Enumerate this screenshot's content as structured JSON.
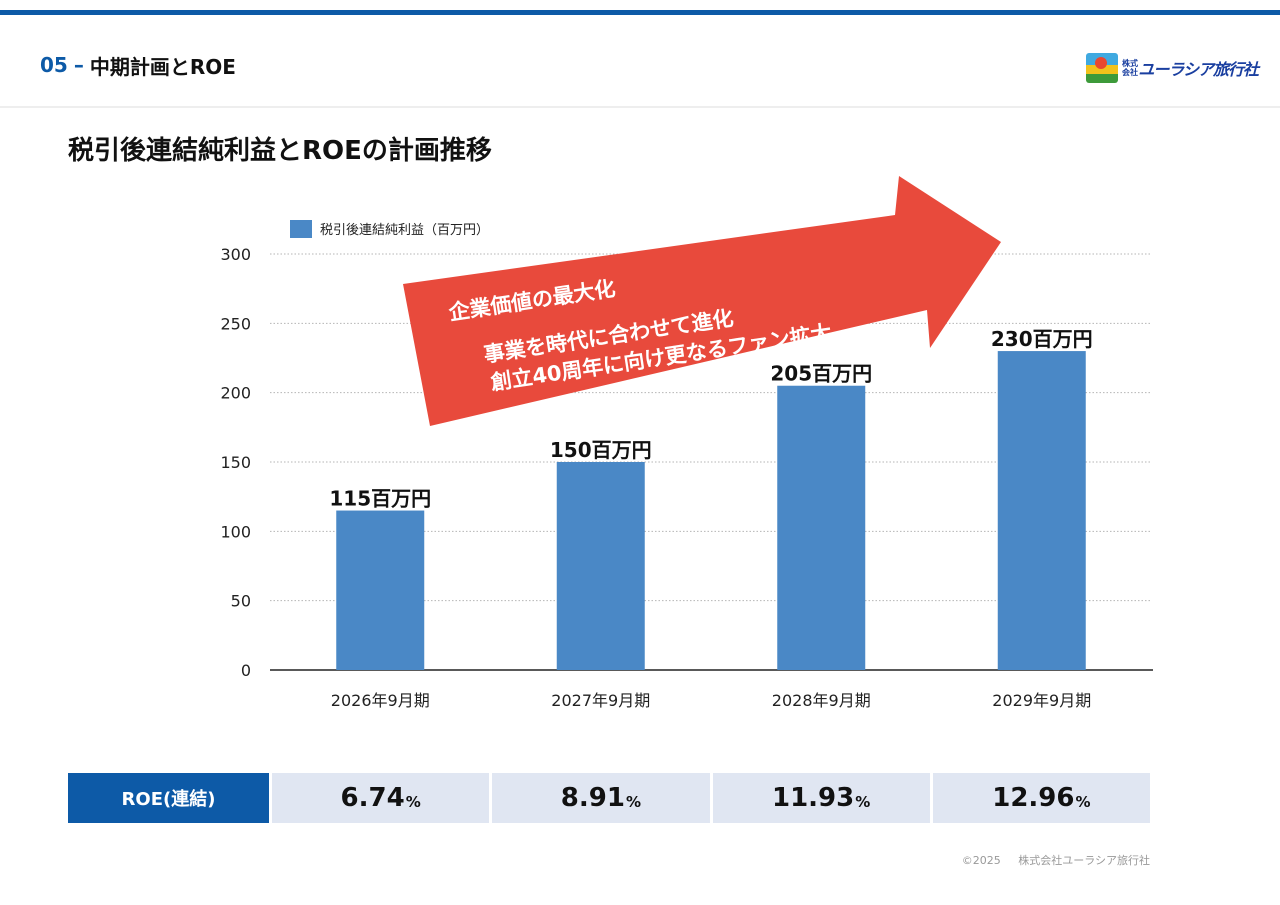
{
  "header": {
    "section_number": "05",
    "dash": "–",
    "section_title": "中期計画とROE"
  },
  "logo": {
    "corp_mark": "株式会社",
    "name": "ユーラシア旅行社"
  },
  "page_title": "税引後連結純利益とROEの計画推移",
  "arrow": {
    "color": "#e84a3c",
    "lines": [
      "企業価値の最大化",
      "事業を時代に合わせて進化",
      "創立40周年に向け更なるファン拡大"
    ]
  },
  "chart_data": {
    "type": "bar",
    "categories": [
      "2026年9月期",
      "2027年9月期",
      "2028年9月期",
      "2029年9月期"
    ],
    "series": [
      {
        "name": "税引後連結純利益（百万円）",
        "values": [
          115,
          150,
          205,
          230
        ],
        "color": "#4a88c6"
      }
    ],
    "data_labels": [
      "115百万円",
      "150百万円",
      "205百万円",
      "230百万円"
    ],
    "ylim": [
      0,
      300
    ],
    "yticks": [
      0,
      50,
      100,
      150,
      200,
      250,
      300
    ],
    "grid": true,
    "legend": "top-left"
  },
  "roe": {
    "label": "ROE(連結)",
    "values": [
      "6.74",
      "8.91",
      "11.93",
      "12.96"
    ],
    "unit": "%"
  },
  "footer": {
    "copyright": "©2025",
    "company": "株式会社ユーラシア旅行社"
  },
  "colors": {
    "brand_blue": "#0d5aa7",
    "bar": "#4a88c6",
    "arrow": "#e84a3c",
    "table_cell": "#e0e6f2"
  }
}
